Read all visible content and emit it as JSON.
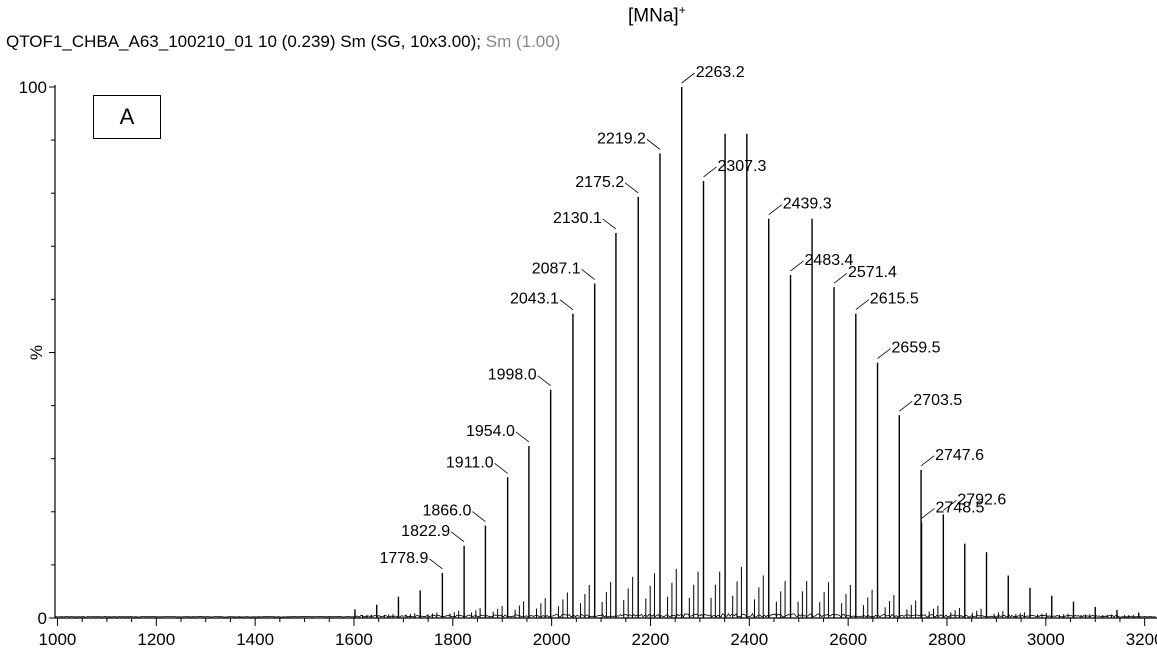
{
  "header": {
    "text": "QTOF1_CHBA_A63_100210_01  10 (0.239) Sm (SG, 10x3.00); ",
    "obscured_text": "Sm (1.00)"
  },
  "ion_label": {
    "text": "[MNa]",
    "charge": "+"
  },
  "panel_label": "A",
  "chart_data": {
    "type": "bar",
    "title": "QTOF1_CHBA_A63_100210_01  10 (0.239) Sm (SG, 10x3.00); Sm (1.00)",
    "xlabel": "",
    "ylabel": "%",
    "xlim": [
      995,
      3225
    ],
    "ylim": [
      0,
      100
    ],
    "x_ticks": [
      1000,
      1200,
      1400,
      1600,
      1800,
      2000,
      2200,
      2400,
      2600,
      2800,
      3000,
      3200
    ],
    "y_ticks": [
      0,
      100
    ],
    "y_mid_label": "%",
    "grid": false,
    "peaks": [
      {
        "mz": 1778.9,
        "intensity": 8.5,
        "label": "1778.9"
      },
      {
        "mz": 1822.9,
        "intensity": 13.6,
        "label": "1822.9"
      },
      {
        "mz": 1866.0,
        "intensity": 17.4,
        "label": "1866.0"
      },
      {
        "mz": 1911.0,
        "intensity": 26.5,
        "label": "1911.0"
      },
      {
        "mz": 1954.0,
        "intensity": 32.4,
        "label": "1954.0"
      },
      {
        "mz": 1998.0,
        "intensity": 43.0,
        "label": "1998.0"
      },
      {
        "mz": 2043.1,
        "intensity": 57.3,
        "label": "2043.1"
      },
      {
        "mz": 2087.1,
        "intensity": 63.0,
        "label": "2087.1"
      },
      {
        "mz": 2130.1,
        "intensity": 72.5,
        "label": "2130.1"
      },
      {
        "mz": 2175.2,
        "intensity": 79.3,
        "label": "2175.2"
      },
      {
        "mz": 2219.2,
        "intensity": 87.5,
        "label": "2219.2"
      },
      {
        "mz": 2263.2,
        "intensity": 100,
        "label": "2263.2"
      },
      {
        "mz": 2307.3,
        "intensity": 82.3,
        "label": "2307.3"
      },
      {
        "mz": 2351.0,
        "intensity": 91.2,
        "label": ""
      },
      {
        "mz": 2395.0,
        "intensity": 91.2,
        "label": ""
      },
      {
        "mz": 2439.3,
        "intensity": 75.2,
        "label": "2439.3"
      },
      {
        "mz": 2483.4,
        "intensity": 64.6,
        "label": "2483.4"
      },
      {
        "mz": 2527.0,
        "intensity": 75.2,
        "label": ""
      },
      {
        "mz": 2571.4,
        "intensity": 62.3,
        "label": "2571.4"
      },
      {
        "mz": 2615.5,
        "intensity": 57.3,
        "label": "2615.5"
      },
      {
        "mz": 2659.5,
        "intensity": 48.1,
        "label": "2659.5"
      },
      {
        "mz": 2703.5,
        "intensity": 38.2,
        "label": "2703.5"
      },
      {
        "mz": 2747.6,
        "intensity": 27.9,
        "label": "2747.6"
      },
      {
        "mz": 2748.5,
        "intensity": 18.0,
        "label": "2748.5"
      },
      {
        "mz": 2792.6,
        "intensity": 19.5,
        "label": "2792.6"
      },
      {
        "mz": 2836.0,
        "intensity": 14.0,
        "label": ""
      },
      {
        "mz": 2880.0,
        "intensity": 12.4,
        "label": ""
      },
      {
        "mz": 2924.0,
        "intensity": 8.0,
        "label": ""
      },
      {
        "mz": 2968.0,
        "intensity": 5.7,
        "label": ""
      },
      {
        "mz": 3012.0,
        "intensity": 4.2,
        "label": ""
      },
      {
        "mz": 3056.0,
        "intensity": 3.1,
        "label": ""
      },
      {
        "mz": 3100.0,
        "intensity": 2.1,
        "label": ""
      },
      {
        "mz": 3144.0,
        "intensity": 1.5,
        "label": ""
      },
      {
        "mz": 3188.0,
        "intensity": 1.0,
        "label": ""
      },
      {
        "mz": 1734.0,
        "intensity": 5.2,
        "label": ""
      },
      {
        "mz": 1690.0,
        "intensity": 4.0,
        "label": ""
      },
      {
        "mz": 1646.0,
        "intensity": 2.5,
        "label": ""
      },
      {
        "mz": 1602.0,
        "intensity": 1.6,
        "label": ""
      }
    ],
    "line_color": "#000000"
  }
}
